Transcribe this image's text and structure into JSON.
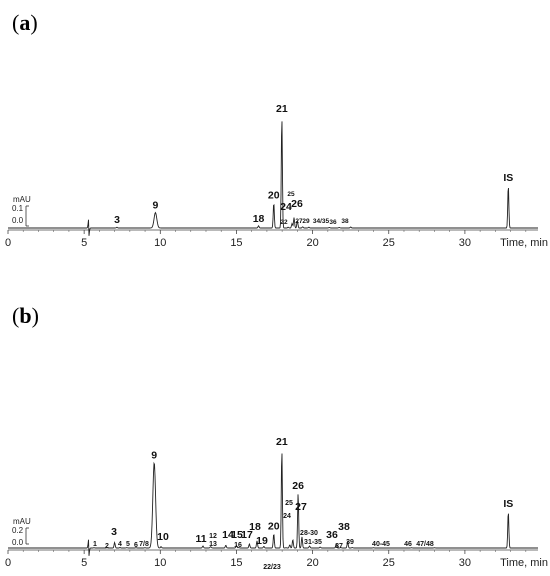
{
  "chart_data": [
    {
      "type": "line",
      "panel_label": "a",
      "xlabel": "Time, min",
      "xlim": [
        0,
        34.8
      ],
      "x_ticks": [
        0,
        5,
        10,
        15,
        20,
        25,
        30
      ],
      "scale_bar": {
        "unit": "mAU",
        "ticks": [
          "0.1",
          "0.0"
        ],
        "range": [
          0,
          0.1
        ]
      },
      "peaks": [
        {
          "label": "3",
          "rt": 7.15,
          "height": 0.004
        },
        {
          "label": "9",
          "rt": 9.68,
          "height": 0.077
        },
        {
          "label": "18",
          "rt": 16.45,
          "height": 0.011
        },
        {
          "label": "20",
          "rt": 17.45,
          "height": 0.127
        },
        {
          "label": "21",
          "rt": 17.98,
          "height": 0.56
        },
        {
          "label": "22",
          "rt": 18.4,
          "height": 0.004
        },
        {
          "label": "24",
          "rt": 18.65,
          "height": 0.022
        },
        {
          "label": "25",
          "rt": 18.78,
          "height": 0.052
        },
        {
          "label": "26",
          "rt": 19.0,
          "height": 0.038
        },
        {
          "label": "27",
          "rt": 19.35,
          "height": 0.006
        },
        {
          "label": "29",
          "rt": 19.75,
          "height": 0.004
        },
        {
          "label": "34/35",
          "rt": 21.1,
          "height": 0.003
        },
        {
          "label": "36",
          "rt": 21.75,
          "height": 0.003
        },
        {
          "label": "38",
          "rt": 22.5,
          "height": 0.005
        },
        {
          "label": "IS",
          "rt": 32.85,
          "height": 0.214
        }
      ]
    },
    {
      "type": "line",
      "panel_label": "b",
      "xlabel": "Time, min",
      "xlim": [
        0,
        34.8
      ],
      "x_ticks": [
        0,
        5,
        10,
        15,
        20,
        25,
        30
      ],
      "scale_bar": {
        "unit": "mAU",
        "ticks": [
          "0.2",
          "0.0"
        ],
        "range": [
          0,
          0.2
        ]
      },
      "peaks": [
        {
          "label": "1",
          "rt": 5.65,
          "height": 0.004
        },
        {
          "label": "2",
          "rt": 6.5,
          "height": 0.004
        },
        {
          "label": "3",
          "rt": 7.0,
          "height": 0.07
        },
        {
          "label": "4",
          "rt": 7.35,
          "height": 0.006
        },
        {
          "label": "5",
          "rt": 7.8,
          "height": 0.004
        },
        {
          "label": "6",
          "rt": 8.4,
          "height": 0.004
        },
        {
          "label": "7/8",
          "rt": 9.0,
          "height": 0.004
        },
        {
          "label": "9",
          "rt": 9.6,
          "height": 1.07
        },
        {
          "label": "10",
          "rt": 10.05,
          "height": 0.017
        },
        {
          "label": "11",
          "rt": 12.8,
          "height": 0.025
        },
        {
          "label": "12",
          "rt": 13.3,
          "height": 0.015
        },
        {
          "label": "13",
          "rt": 13.35,
          "height": 0.004
        },
        {
          "label": "14",
          "rt": 14.3,
          "height": 0.034
        },
        {
          "label": "15",
          "rt": 15.0,
          "height": 0.03
        },
        {
          "label": "16",
          "rt": 15.15,
          "height": 0.006
        },
        {
          "label": "17",
          "rt": 15.85,
          "height": 0.05
        },
        {
          "label": "18",
          "rt": 16.35,
          "height": 0.09
        },
        {
          "label": "19",
          "rt": 16.8,
          "height": 0.02
        },
        {
          "label": "20",
          "rt": 17.45,
          "height": 0.18
        },
        {
          "label": "21",
          "rt": 17.98,
          "height": 1.24
        },
        {
          "label": "22/23",
          "rt": 18.25,
          "height": 0.004
        },
        {
          "label": "24",
          "rt": 18.5,
          "height": 0.04
        },
        {
          "label": "25",
          "rt": 18.7,
          "height": 0.105
        },
        {
          "label": "26",
          "rt": 19.05,
          "height": 0.69
        },
        {
          "label": "27",
          "rt": 19.3,
          "height": 0.14
        },
        {
          "label": "28-30",
          "rt": 19.8,
          "height": 0.025
        },
        {
          "label": "31-35",
          "rt": 20.5,
          "height": 0.012
        },
        {
          "label": "36",
          "rt": 21.55,
          "height": 0.05
        },
        {
          "label": "37",
          "rt": 21.85,
          "height": 0.006
        },
        {
          "label": "38",
          "rt": 22.3,
          "height": 0.078
        },
        {
          "label": "39",
          "rt": 22.6,
          "height": 0.006
        },
        {
          "label": "40-45",
          "rt": 24.0,
          "height": 0.004
        },
        {
          "label": "46",
          "rt": 26.5,
          "height": 0.004
        },
        {
          "label": "47/48",
          "rt": 28.0,
          "height": 0.004
        },
        {
          "label": "IS",
          "rt": 32.85,
          "height": 0.46
        }
      ]
    }
  ]
}
